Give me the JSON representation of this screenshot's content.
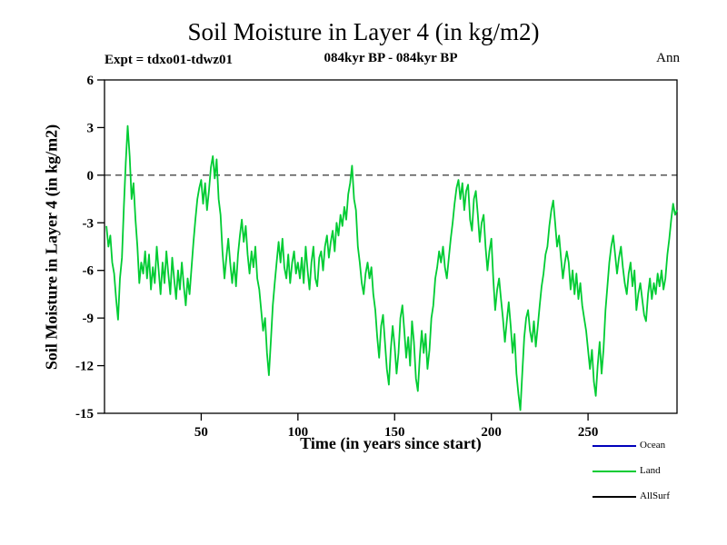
{
  "chart_data": {
    "type": "line",
    "title": "Soil Moisture in Layer 4 (in kg/m2)",
    "subtitle_left": "Expt = tdxo01-tdwz01",
    "subtitle_center": "084kyr BP - 084kyr BP",
    "subtitle_right": "Ann",
    "xlabel": "Time (in years since start)",
    "ylabel": "Soil Moisture in Layer 4 (in kg/m2)",
    "xlim": [
      0,
      296
    ],
    "ylim": [
      -15,
      6
    ],
    "xticks": [
      50,
      100,
      150,
      200,
      250
    ],
    "yticks": [
      6,
      3,
      0,
      -3,
      -6,
      -9,
      -12,
      -15
    ],
    "grid": false,
    "zero_line": {
      "y": 0,
      "style": "dashed",
      "color": "#000000"
    },
    "legend": {
      "position": "bottom-right",
      "entries": [
        {
          "label": "Ocean",
          "color": "#0000bb"
        },
        {
          "label": "Land",
          "color": "#00cc33"
        },
        {
          "label": "AllSurf",
          "color": "#000000"
        }
      ]
    },
    "series": [
      {
        "name": "Land",
        "color": "#00cc33",
        "x_start": 1,
        "x_step": 1,
        "values": [
          -3.2,
          -4.5,
          -3.8,
          -5.5,
          -6.2,
          -7.8,
          -9.1,
          -6.5,
          -5.2,
          -2.0,
          0.8,
          3.1,
          1.2,
          -1.5,
          -0.5,
          -2.8,
          -4.5,
          -6.8,
          -5.5,
          -6.2,
          -4.8,
          -6.5,
          -5.0,
          -7.2,
          -5.8,
          -6.8,
          -4.5,
          -6.0,
          -7.5,
          -5.5,
          -6.8,
          -4.8,
          -6.2,
          -7.5,
          -5.2,
          -6.5,
          -7.8,
          -6.0,
          -7.2,
          -5.5,
          -7.0,
          -8.2,
          -6.5,
          -7.5,
          -5.8,
          -4.2,
          -2.8,
          -1.5,
          -0.8,
          -0.3,
          -1.8,
          -0.5,
          -2.2,
          -1.0,
          0.5,
          1.2,
          -0.2,
          1.0,
          -1.5,
          -2.5,
          -4.8,
          -6.5,
          -5.2,
          -4.0,
          -5.5,
          -6.8,
          -5.5,
          -7.0,
          -5.0,
          -3.8,
          -2.8,
          -4.2,
          -3.2,
          -5.0,
          -6.2,
          -4.8,
          -5.8,
          -4.5,
          -6.5,
          -7.2,
          -8.5,
          -9.8,
          -9.0,
          -11.2,
          -12.6,
          -10.5,
          -8.2,
          -6.8,
          -5.5,
          -4.2,
          -5.5,
          -4.0,
          -5.8,
          -6.5,
          -5.0,
          -6.8,
          -5.5,
          -4.8,
          -6.2,
          -5.5,
          -6.5,
          -5.2,
          -6.8,
          -4.5,
          -6.0,
          -7.2,
          -5.5,
          -4.5,
          -6.5,
          -7.0,
          -5.2,
          -4.8,
          -6.0,
          -4.5,
          -3.8,
          -5.2,
          -4.2,
          -3.5,
          -4.8,
          -3.0,
          -3.8,
          -2.5,
          -3.2,
          -2.0,
          -2.8,
          -1.2,
          -0.5,
          0.6,
          -1.5,
          -2.2,
          -4.5,
          -5.5,
          -6.8,
          -7.5,
          -6.2,
          -5.5,
          -6.5,
          -5.8,
          -7.5,
          -8.5,
          -10.2,
          -11.5,
          -9.5,
          -8.8,
          -10.5,
          -12.2,
          -13.2,
          -11.0,
          -9.5,
          -10.8,
          -12.5,
          -11.2,
          -9.0,
          -8.2,
          -9.8,
          -11.5,
          -10.2,
          -12.0,
          -9.2,
          -10.5,
          -12.8,
          -13.6,
          -11.5,
          -9.8,
          -11.2,
          -10.0,
          -12.2,
          -11.0,
          -9.0,
          -8.2,
          -6.5,
          -5.8,
          -4.8,
          -5.5,
          -4.5,
          -5.8,
          -6.5,
          -5.2,
          -4.0,
          -3.0,
          -1.8,
          -0.8,
          -0.3,
          -1.5,
          -0.5,
          -2.2,
          -1.0,
          -0.6,
          -2.8,
          -3.5,
          -1.5,
          -1.0,
          -2.5,
          -4.2,
          -3.0,
          -2.5,
          -4.5,
          -6.0,
          -4.8,
          -4.0,
          -6.5,
          -8.5,
          -7.2,
          -6.5,
          -7.8,
          -9.0,
          -10.5,
          -9.2,
          -8.0,
          -9.5,
          -11.2,
          -10.0,
          -12.5,
          -13.8,
          -14.8,
          -12.5,
          -10.2,
          -9.0,
          -8.5,
          -9.8,
          -10.5,
          -9.2,
          -10.8,
          -9.5,
          -8.2,
          -7.0,
          -6.2,
          -5.0,
          -4.5,
          -3.2,
          -2.2,
          -1.6,
          -3.0,
          -4.5,
          -3.8,
          -5.2,
          -6.5,
          -5.5,
          -4.8,
          -5.5,
          -7.2,
          -6.0,
          -7.5,
          -6.2,
          -7.8,
          -6.8,
          -8.2,
          -9.0,
          -9.8,
          -11.0,
          -12.2,
          -11.0,
          -13.0,
          -13.9,
          -12.0,
          -10.5,
          -12.5,
          -11.0,
          -8.5,
          -7.0,
          -5.5,
          -4.5,
          -3.8,
          -5.0,
          -6.2,
          -5.2,
          -4.5,
          -5.8,
          -6.8,
          -7.5,
          -6.2,
          -5.5,
          -7.0,
          -6.0,
          -8.5,
          -7.5,
          -6.8,
          -7.8,
          -8.8,
          -9.2,
          -7.5,
          -6.5,
          -7.8,
          -6.8,
          -7.5,
          -6.2,
          -7.0,
          -6.0,
          -7.2,
          -6.5,
          -5.0,
          -4.0,
          -2.8,
          -1.8,
          -2.5,
          -2.2
        ]
      }
    ]
  }
}
